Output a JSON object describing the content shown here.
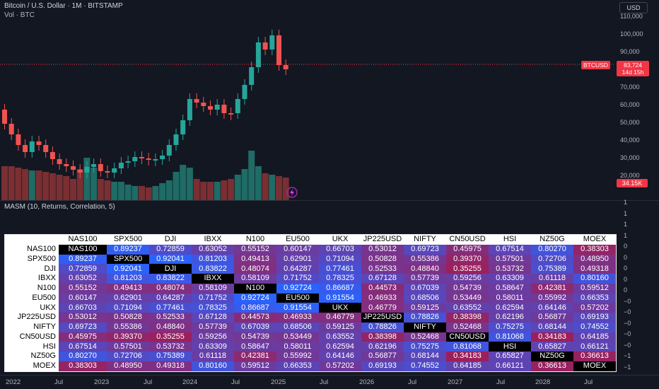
{
  "header": {
    "symbol_title": "Bitcoin / U.S. Dollar · 1M · BITSTAMP",
    "volume_label": "Vol · BTC",
    "currency_button": "USD"
  },
  "price_axis": {
    "ticks": [
      "110,000",
      "100,000",
      "90,000",
      "80,000",
      "70,000",
      "60,000",
      "50,000",
      "40,000",
      "30,000",
      "20,000"
    ],
    "tick_values": [
      110000,
      100000,
      90000,
      80000,
      70000,
      60000,
      50000,
      40000,
      30000,
      20000
    ],
    "current_price": "83,724",
    "countdown": "14d 15h",
    "symbol_badge": "BTCUSD",
    "volume_badge": "34.15K"
  },
  "indicator": {
    "title": "MASM (10, Returns, Correlation, 5)",
    "axis_ticks": [
      "1",
      "1",
      "1",
      "1",
      "0",
      "0",
      "0",
      "0",
      "0",
      "−0",
      "−0",
      "−0",
      "−0",
      "−0",
      "−1",
      "−1"
    ]
  },
  "time_axis": {
    "labels": [
      "2022",
      "Jul",
      "2023",
      "Jul",
      "2024",
      "Jul",
      "2025",
      "Jul",
      "2026",
      "Jul",
      "2027",
      "Jul",
      "2028",
      "Jul"
    ]
  },
  "colors": {
    "background": "#131722",
    "bull": "#26a69a",
    "bear": "#ef5350",
    "high_corr": "#2962ff",
    "low_corr": "#9c1f5a",
    "alert": "#f23645"
  },
  "chart_data": {
    "type": "table",
    "symbols": [
      "NAS100",
      "SPX500",
      "DJI",
      "IBXX",
      "N100",
      "EU500",
      "UKX",
      "JP225USD",
      "NIFTY",
      "CN50USD",
      "HSI",
      "NZ50G",
      "MOEX"
    ],
    "matrix": [
      [
        "NAS100",
        "0.89237",
        "0.72859",
        "0.63052",
        "0.55152",
        "0.60147",
        "0.66703",
        "0.53012",
        "0.69723",
        "0.45975",
        "0.67514",
        "0.80270",
        "0.38303"
      ],
      [
        "0.89237",
        "SPX500",
        "0.92041",
        "0.81203",
        "0.49413",
        "0.62901",
        "0.71094",
        "0.50828",
        "0.55386",
        "0.39370",
        "0.57501",
        "0.72706",
        "0.48950"
      ],
      [
        "0.72859",
        "0.92041",
        "DJI",
        "0.83822",
        "0.48074",
        "0.64287",
        "0.77461",
        "0.52533",
        "0.48840",
        "0.35255",
        "0.53732",
        "0.75389",
        "0.49318"
      ],
      [
        "0.63052",
        "0.81203",
        "0.83822",
        "IBXX",
        "0.58109",
        "0.71752",
        "0.78325",
        "0.67128",
        "0.57739",
        "0.59256",
        "0.63309",
        "0.61118",
        "0.80160"
      ],
      [
        "0.55152",
        "0.49413",
        "0.48074",
        "0.58109",
        "N100",
        "0.92724",
        "0.86687",
        "0.44573",
        "0.67039",
        "0.54739",
        "0.58647",
        "0.42381",
        "0.59512"
      ],
      [
        "0.60147",
        "0.62901",
        "0.64287",
        "0.71752",
        "0.92724",
        "EU500",
        "0.91554",
        "0.46933",
        "0.68506",
        "0.53449",
        "0.58011",
        "0.55992",
        "0.66353"
      ],
      [
        "0.66703",
        "0.71094",
        "0.77461",
        "0.78325",
        "0.86687",
        "0.91554",
        "UKX",
        "0.46779",
        "0.59125",
        "0.63552",
        "0.62594",
        "0.64146",
        "0.57202"
      ],
      [
        "0.53012",
        "0.50828",
        "0.52533",
        "0.67128",
        "0.44573",
        "0.46933",
        "0.46779",
        "JP225USD",
        "0.78826",
        "0.38398",
        "0.62196",
        "0.56877",
        "0.69193"
      ],
      [
        "0.69723",
        "0.55386",
        "0.48840",
        "0.57739",
        "0.67039",
        "0.68506",
        "0.59125",
        "0.78826",
        "NIFTY",
        "0.52468",
        "0.75275",
        "0.68144",
        "0.74552"
      ],
      [
        "0.45975",
        "0.39370",
        "0.35255",
        "0.59256",
        "0.54739",
        "0.53449",
        "0.63552",
        "0.38398",
        "0.52468",
        "CN50USD",
        "0.81068",
        "0.34183",
        "0.64185"
      ],
      [
        "0.67514",
        "0.57501",
        "0.53732",
        "0.63309",
        "0.58647",
        "0.58011",
        "0.62594",
        "0.62196",
        "0.75275",
        "0.81068",
        "HSI",
        "0.65827",
        "0.66121"
      ],
      [
        "0.80270",
        "0.72706",
        "0.75389",
        "0.61118",
        "0.42381",
        "0.55992",
        "0.64146",
        "0.56877",
        "0.68144",
        "0.34183",
        "0.65827",
        "NZ50G",
        "0.36613"
      ],
      [
        "0.38303",
        "0.48950",
        "0.49318",
        "0.80160",
        "0.59512",
        "0.66353",
        "0.57202",
        "0.69193",
        "0.74552",
        "0.64185",
        "0.66121",
        "0.36613",
        "MOEX"
      ]
    ]
  }
}
